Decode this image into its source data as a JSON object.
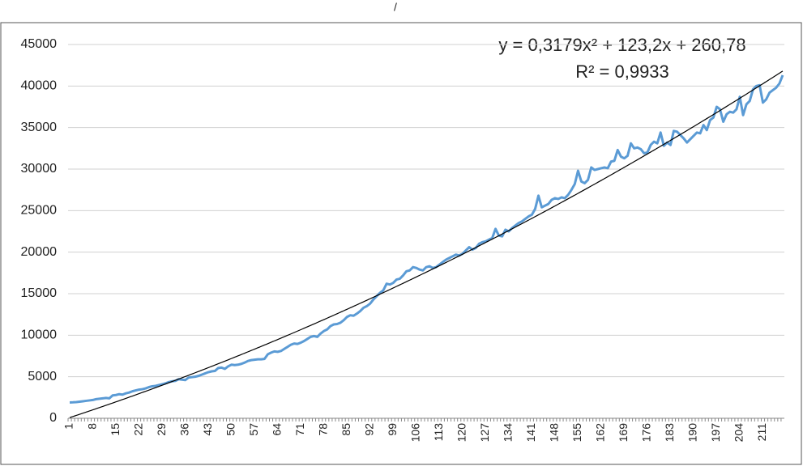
{
  "chart_data": {
    "type": "line",
    "title": "/",
    "categories": [
      "1",
      null,
      null,
      null,
      null,
      null,
      null,
      "8",
      null,
      null,
      null,
      null,
      null,
      null,
      "15",
      null,
      null,
      null,
      null,
      null,
      null,
      "22",
      null,
      null,
      null,
      null,
      null,
      null,
      "29",
      null,
      null,
      null,
      null,
      null,
      null,
      "36",
      null,
      null,
      null,
      null,
      null,
      null,
      "43",
      null,
      null,
      null,
      null,
      null,
      null,
      "50",
      null,
      null,
      null,
      null,
      null,
      null,
      "57",
      null,
      null,
      null,
      null,
      null,
      null,
      "64",
      null,
      null,
      null,
      null,
      null,
      null,
      "71",
      null,
      null,
      null,
      null,
      null,
      null,
      "78",
      null,
      null,
      null,
      null,
      null,
      null,
      "85",
      null,
      null,
      null,
      null,
      null,
      null,
      "92",
      null,
      null,
      null,
      null,
      null,
      null,
      "99",
      null,
      null,
      null,
      null,
      null,
      null,
      "106",
      null,
      null,
      null,
      null,
      null,
      null,
      "113",
      null,
      null,
      null,
      null,
      null,
      null,
      "120",
      null,
      null,
      null,
      null,
      null,
      null,
      "127",
      null,
      null,
      null,
      null,
      null,
      null,
      "134",
      null,
      null,
      null,
      null,
      null,
      null,
      "141",
      null,
      null,
      null,
      null,
      null,
      null,
      "148",
      null,
      null,
      null,
      null,
      null,
      null,
      "155",
      null,
      null,
      null,
      null,
      null,
      null,
      "162",
      null,
      null,
      null,
      null,
      null,
      null,
      "169",
      null,
      null,
      null,
      null,
      null,
      null,
      "176",
      null,
      null,
      null,
      null,
      null,
      null,
      "183",
      null,
      null,
      null,
      null,
      null,
      null,
      "190",
      null,
      null,
      null,
      null,
      null,
      null,
      "197",
      null,
      null,
      null,
      null,
      null,
      null,
      "204",
      null,
      null,
      null,
      null,
      null,
      null,
      "211",
      null,
      null,
      null,
      null,
      null,
      null
    ],
    "series": [
      {
        "color": "#5b9bd5",
        "values": [
          1900,
          1920,
          1950,
          2000,
          2050,
          2100,
          2150,
          2200,
          2300,
          2350,
          2400,
          2450,
          2400,
          2750,
          2800,
          2900,
          2850,
          3000,
          3100,
          3250,
          3350,
          3450,
          3500,
          3600,
          3750,
          3850,
          3900,
          4000,
          4100,
          4200,
          4350,
          4450,
          4500,
          4700,
          4650,
          4600,
          4900,
          4950,
          5000,
          5100,
          5250,
          5400,
          5550,
          5650,
          5700,
          6050,
          6100,
          5950,
          6250,
          6450,
          6400,
          6450,
          6550,
          6700,
          6900,
          7000,
          7050,
          7100,
          7100,
          7150,
          7700,
          7900,
          8050,
          8000,
          8100,
          8350,
          8600,
          8850,
          9000,
          8950,
          9100,
          9300,
          9550,
          9800,
          9900,
          9800,
          10200,
          10500,
          10700,
          11100,
          11300,
          11350,
          11500,
          11800,
          12200,
          12400,
          12350,
          12600,
          12900,
          13300,
          13500,
          13800,
          14300,
          14700,
          15100,
          15400,
          16200,
          16100,
          16300,
          16700,
          16800,
          17200,
          17700,
          17800,
          18200,
          18100,
          17900,
          17800,
          18200,
          18300,
          18100,
          18200,
          18500,
          18800,
          19100,
          19300,
          19500,
          19700,
          19600,
          19800,
          20200,
          20600,
          20300,
          20500,
          21000,
          21200,
          21300,
          21500,
          21700,
          22800,
          22000,
          21900,
          22700,
          22500,
          22900,
          23200,
          23500,
          23700,
          24000,
          24300,
          24500,
          25200,
          26800,
          25400,
          25600,
          25800,
          26300,
          26500,
          26400,
          26600,
          26500,
          26900,
          27500,
          28200,
          29800,
          28500,
          28300,
          28700,
          30200,
          29900,
          30000,
          30100,
          30200,
          30100,
          30900,
          31000,
          32300,
          31500,
          31300,
          31600,
          33100,
          32500,
          32600,
          32400,
          31900,
          32000,
          32900,
          33300,
          33100,
          34400,
          32800,
          33200,
          32900,
          34600,
          34500,
          34100,
          33700,
          33200,
          33600,
          34000,
          34400,
          34300,
          35300,
          34700,
          35900,
          36200,
          37500,
          37200,
          35700,
          36600,
          36900,
          36800,
          37200,
          38700,
          36500,
          37800,
          38200,
          39600,
          40000,
          40100,
          38000,
          38400,
          39200,
          39500,
          39800,
          40300,
          41300
        ]
      }
    ],
    "trendline": {
      "type": "polynomial",
      "order": 2,
      "color": "#000000",
      "equation": "y = 0,3179x² + 123,2x + 260,78",
      "r_squared": "R² = 0,9933"
    },
    "ylim": [
      0,
      45000
    ],
    "yticks": [
      0,
      5000,
      10000,
      15000,
      20000,
      25000,
      30000,
      35000,
      40000,
      45000
    ],
    "grid": true
  }
}
